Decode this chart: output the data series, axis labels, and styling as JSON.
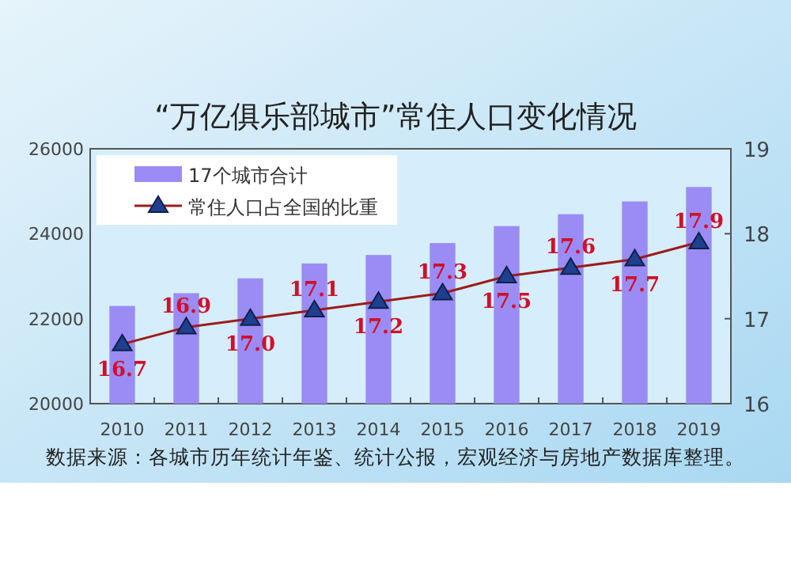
{
  "chart_data": {
    "type": "bar",
    "title": "“万亿俱乐部城市”常住人口变化情况",
    "categories": [
      "2010",
      "2011",
      "2012",
      "2013",
      "2014",
      "2015",
      "2016",
      "2017",
      "2018",
      "2019"
    ],
    "series": [
      {
        "name": "17个城市合计",
        "color": "#9b8cf5",
        "values": [
          22300,
          22600,
          22950,
          23300,
          23500,
          23780,
          24180,
          24460,
          24760,
          25100
        ]
      },
      {
        "name": "常住人口占全国的比重",
        "type": "line",
        "axis": "y2",
        "color": "#9b1c1c",
        "marker": "triangle",
        "values": [
          16.7,
          16.9,
          17.0,
          17.1,
          17.2,
          17.3,
          17.5,
          17.6,
          17.7,
          17.9
        ],
        "value_labels": [
          "16.7",
          "16.9",
          "17.0",
          "17.1",
          "17.2",
          "17.3",
          "17.5",
          "17.6",
          "17.7",
          "17.9"
        ]
      }
    ],
    "ylim": [
      20000,
      26000
    ],
    "yticks": [
      20000,
      22000,
      24000,
      26000
    ],
    "y2lim": [
      16,
      19
    ],
    "y2ticks": [
      16,
      17,
      18,
      19
    ],
    "legend": "top left",
    "annotations": [
      "数据来源：各城市历年统计年鉴、统计公报，宏观经济与房地产数据库整理。"
    ]
  }
}
